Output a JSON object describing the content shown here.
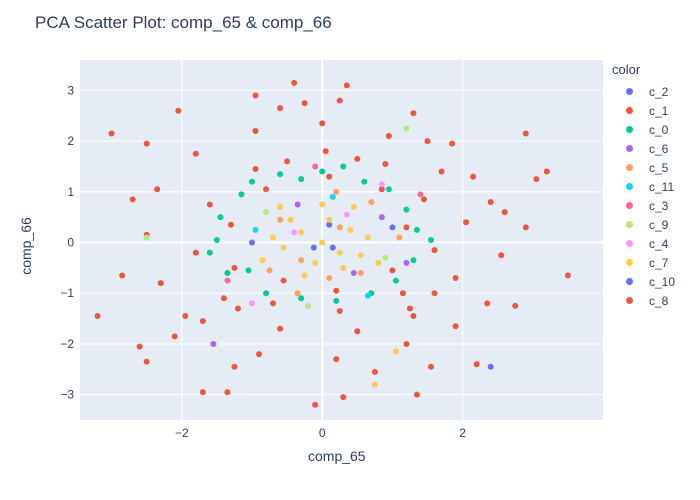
{
  "chart_data": {
    "type": "scatter",
    "title": "PCA Scatter Plot: comp_65 & comp_66",
    "xlabel": "comp_65",
    "ylabel": "comp_66",
    "xlim": [
      -3.45,
      4.0
    ],
    "ylim": [
      -3.5,
      3.6
    ],
    "x_ticks": [
      -2,
      0,
      2
    ],
    "y_ticks": [
      -3,
      -2,
      -1,
      0,
      1,
      2,
      3
    ],
    "grid": true,
    "legend": {
      "title": "color",
      "position": "right"
    },
    "series": [
      {
        "name": "c_2",
        "color": "#636efa",
        "points": [
          [
            2.4,
            -2.45
          ],
          [
            -0.12,
            -0.1
          ],
          [
            0.1,
            0.35
          ]
        ]
      },
      {
        "name": "c_1",
        "color": "#EF553B",
        "points": [
          [
            -3.2,
            -1.45
          ],
          [
            -3.0,
            2.15
          ],
          [
            -2.6,
            -2.05
          ],
          [
            -2.5,
            -2.35
          ],
          [
            -2.05,
            2.6
          ],
          [
            -2.5,
            1.95
          ],
          [
            -2.1,
            -1.85
          ],
          [
            0.35,
            3.1
          ],
          [
            -0.4,
            3.15
          ],
          [
            -0.95,
            2.9
          ],
          [
            2.9,
            2.15
          ],
          [
            3.05,
            1.25
          ],
          [
            3.2,
            1.4
          ],
          [
            2.75,
            -1.25
          ],
          [
            2.9,
            0.3
          ],
          [
            -0.1,
            -3.2
          ],
          [
            0.3,
            -3.05
          ],
          [
            1.35,
            -3.0
          ],
          [
            1.55,
            -2.45
          ],
          [
            -1.7,
            -2.95
          ],
          [
            -1.35,
            -2.95
          ],
          [
            2.2,
            -2.4
          ],
          [
            -0.6,
            2.65
          ],
          [
            0.25,
            2.8
          ],
          [
            1.3,
            2.55
          ],
          [
            1.5,
            2.0
          ],
          [
            2.15,
            1.3
          ],
          [
            2.4,
            0.8
          ],
          [
            2.55,
            -0.25
          ],
          [
            2.35,
            -1.2
          ],
          [
            1.9,
            -1.65
          ],
          [
            1.2,
            -2.0
          ],
          [
            0.2,
            -2.3
          ],
          [
            -0.9,
            -2.2
          ],
          [
            -1.7,
            -1.55
          ],
          [
            -2.3,
            -0.8
          ],
          [
            -2.5,
            0.15
          ],
          [
            -2.35,
            1.05
          ],
          [
            -1.8,
            1.75
          ],
          [
            -0.95,
            2.2
          ],
          [
            0.0,
            2.35
          ],
          [
            0.95,
            2.1
          ],
          [
            1.7,
            1.4
          ],
          [
            2.05,
            0.4
          ],
          [
            1.9,
            -0.7
          ],
          [
            1.3,
            -1.45
          ],
          [
            0.5,
            -1.75
          ],
          [
            -0.6,
            -1.7
          ],
          [
            -1.4,
            -1.1
          ],
          [
            -1.8,
            -0.2
          ],
          [
            -1.6,
            0.75
          ],
          [
            -0.95,
            1.45
          ],
          [
            0.05,
            1.8
          ],
          [
            0.9,
            1.55
          ],
          [
            1.45,
            0.85
          ],
          [
            1.6,
            -0.15
          ],
          [
            1.15,
            -1.0
          ],
          [
            0.25,
            -1.35
          ],
          [
            -0.7,
            -1.2
          ],
          [
            -1.25,
            -0.5
          ],
          [
            -1.3,
            0.35
          ],
          [
            -0.8,
            1.05
          ],
          [
            0.1,
            1.3
          ],
          [
            0.85,
            1.05
          ],
          [
            1.2,
            0.3
          ],
          [
            1.0,
            -0.55
          ],
          [
            0.2,
            -0.95
          ],
          [
            -0.55,
            -0.75
          ],
          [
            -2.85,
            -0.65
          ],
          [
            -2.7,
            0.85
          ],
          [
            -1.25,
            -2.45
          ],
          [
            0.75,
            -2.55
          ],
          [
            2.6,
            0.6
          ],
          [
            -0.25,
            2.75
          ],
          [
            1.85,
            1.95
          ],
          [
            -1.95,
            -1.45
          ],
          [
            3.5,
            -0.65
          ]
        ]
      },
      {
        "name": "c_0",
        "color": "#00cc96",
        "points": [
          [
            -1.45,
            0.5
          ],
          [
            -1.35,
            -0.6
          ],
          [
            -1.0,
            1.2
          ],
          [
            0.0,
            1.4
          ],
          [
            0.95,
            1.05
          ],
          [
            1.35,
            0.25
          ],
          [
            1.05,
            -0.75
          ],
          [
            0.2,
            -1.15
          ],
          [
            -0.8,
            -1.0
          ],
          [
            -1.5,
            0.05
          ],
          [
            -1.15,
            0.95
          ],
          [
            -0.3,
            1.25
          ],
          [
            0.6,
            1.2
          ],
          [
            1.2,
            0.65
          ],
          [
            1.3,
            -0.35
          ],
          [
            0.7,
            -1.0
          ],
          [
            -0.3,
            -1.1
          ],
          [
            -1.05,
            -0.55
          ],
          [
            1.55,
            0.05
          ],
          [
            -1.6,
            -0.2
          ],
          [
            0.3,
            1.5
          ],
          [
            -0.6,
            1.35
          ]
        ]
      },
      {
        "name": "c_6",
        "color": "#ab63fa",
        "points": [
          [
            -1.55,
            -2.0
          ],
          [
            0.45,
            -0.6
          ],
          [
            -0.35,
            0.75
          ],
          [
            1.2,
            -0.4
          ],
          [
            0.85,
            0.5
          ]
        ]
      },
      {
        "name": "c_5",
        "color": "#FFA15A",
        "points": [
          [
            -0.3,
            -0.35
          ],
          [
            0.25,
            0.3
          ],
          [
            0.55,
            -0.6
          ],
          [
            -0.6,
            0.45
          ],
          [
            0.1,
            -0.7
          ],
          [
            0.7,
            0.8
          ],
          [
            -0.75,
            -0.55
          ],
          [
            1.1,
            0.1
          ],
          [
            0.2,
            1.0
          ],
          [
            -0.35,
            -1.0
          ]
        ]
      },
      {
        "name": "c_11",
        "color": "#19d3f3",
        "points": [
          [
            0.15,
            0.9
          ],
          [
            -0.95,
            0.25
          ],
          [
            0.65,
            -1.05
          ]
        ]
      },
      {
        "name": "c_3",
        "color": "#FF6692",
        "points": [
          [
            -1.35,
            -0.75
          ],
          [
            1.4,
            0.95
          ],
          [
            -0.1,
            1.5
          ]
        ]
      },
      {
        "name": "c_9",
        "color": "#B6E880",
        "points": [
          [
            -2.5,
            0.1
          ],
          [
            1.2,
            2.25
          ],
          [
            -0.8,
            0.6
          ],
          [
            0.9,
            -0.3
          ],
          [
            -0.2,
            -1.25
          ]
        ]
      },
      {
        "name": "c_4",
        "color": "#FF97FF",
        "points": [
          [
            0.85,
            1.15
          ],
          [
            -1.0,
            -1.2
          ],
          [
            0.35,
            0.55
          ],
          [
            -0.4,
            0.2
          ]
        ]
      },
      {
        "name": "c_7",
        "color": "#FECB52",
        "points": [
          [
            0.0,
            0.0
          ],
          [
            -0.3,
            0.2
          ],
          [
            0.25,
            -0.2
          ],
          [
            -0.55,
            -0.1
          ],
          [
            0.4,
            0.25
          ],
          [
            -0.1,
            -0.4
          ],
          [
            0.1,
            0.45
          ],
          [
            -0.45,
            0.45
          ],
          [
            0.55,
            -0.25
          ],
          [
            -0.7,
            0.1
          ],
          [
            0.65,
            0.1
          ],
          [
            -0.25,
            -0.65
          ],
          [
            0.3,
            -0.5
          ],
          [
            -0.85,
            -0.35
          ],
          [
            0.8,
            -0.4
          ],
          [
            0.75,
            -2.8
          ],
          [
            1.05,
            -2.15
          ],
          [
            0.0,
            0.75
          ],
          [
            -0.6,
            0.7
          ],
          [
            0.45,
            0.7
          ]
        ]
      },
      {
        "name": "c_10",
        "color": "#636efa",
        "points": [
          [
            0.15,
            -0.1
          ],
          [
            -1.0,
            0.0
          ],
          [
            1.0,
            0.3
          ]
        ]
      },
      {
        "name": "c_8",
        "color": "#EF553B",
        "points": [
          [
            -1.2,
            -1.3
          ],
          [
            1.25,
            -1.3
          ],
          [
            -0.5,
            1.6
          ],
          [
            0.5,
            1.65
          ],
          [
            1.6,
            -1.0
          ]
        ]
      }
    ]
  }
}
